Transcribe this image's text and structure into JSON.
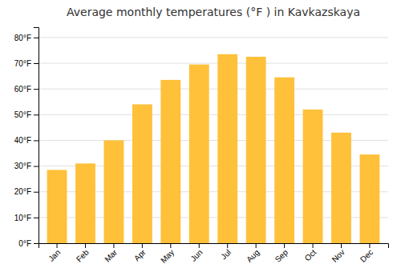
{
  "chart_data": {
    "type": "bar",
    "title": "Average monthly temperatures (°F ) in Kavkazskaya",
    "categories": [
      "Jan",
      "Feb",
      "Mar",
      "Apr",
      "May",
      "Jun",
      "Jul",
      "Aug",
      "Sep",
      "Oct",
      "Nov",
      "Dec"
    ],
    "values": [
      28.5,
      31.0,
      40.0,
      54.0,
      63.5,
      69.5,
      73.5,
      72.5,
      64.5,
      52.0,
      43.0,
      34.5
    ],
    "color": "#FFC03A",
    "ylim": [
      0,
      84
    ],
    "yticks": [
      {
        "value": 0,
        "label": "0°F"
      },
      {
        "value": 10,
        "label": "10°F"
      },
      {
        "value": 20,
        "label": "20°F"
      },
      {
        "value": 30,
        "label": "30°F"
      },
      {
        "value": 40,
        "label": "40°F"
      },
      {
        "value": 50,
        "label": "50°F"
      },
      {
        "value": 60,
        "label": "60°F"
      },
      {
        "value": 70,
        "label": "70°F"
      },
      {
        "value": 80,
        "label": "80°F"
      }
    ],
    "grid": true
  }
}
